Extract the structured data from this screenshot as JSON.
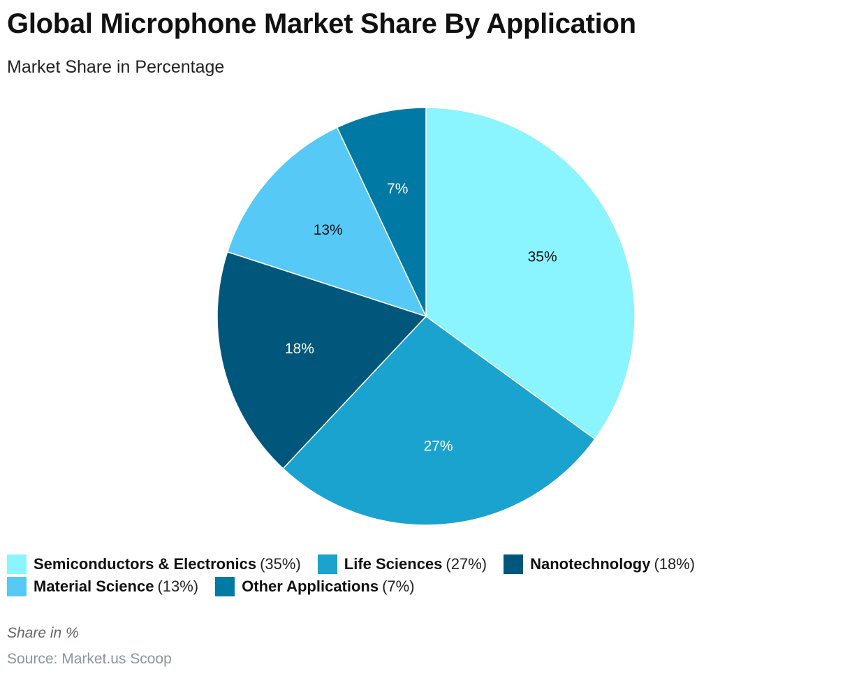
{
  "chart_data": {
    "type": "pie",
    "title": "Global Microphone Market Share By Application",
    "subtitle": "Market Share in Percentage",
    "slices": [
      {
        "label": "Semiconductors & Electronics",
        "value": 35,
        "value_label": "35%",
        "legend_value": "(35%)",
        "color": "#8AF4FF",
        "text_color": "#111111"
      },
      {
        "label": "Life Sciences",
        "value": 27,
        "value_label": "27%",
        "legend_value": "(27%)",
        "color": "#1AA3CF",
        "text_color": "#ffffff"
      },
      {
        "label": "Nanotechnology",
        "value": 18,
        "value_label": "18%",
        "legend_value": "(18%)",
        "color": "#01567C",
        "text_color": "#ffffff"
      },
      {
        "label": "Material Science",
        "value": 13,
        "value_label": "13%",
        "legend_value": "(13%)",
        "color": "#56C9F6",
        "text_color": "#111111"
      },
      {
        "label": "Other Applications",
        "value": 7,
        "value_label": "7%",
        "legend_value": "(7%)",
        "color": "#0079A4",
        "text_color": "#ffffff"
      }
    ],
    "legend_position": "bottom-left",
    "note": "Share in %",
    "source": "Source: Market.us Scoop"
  }
}
